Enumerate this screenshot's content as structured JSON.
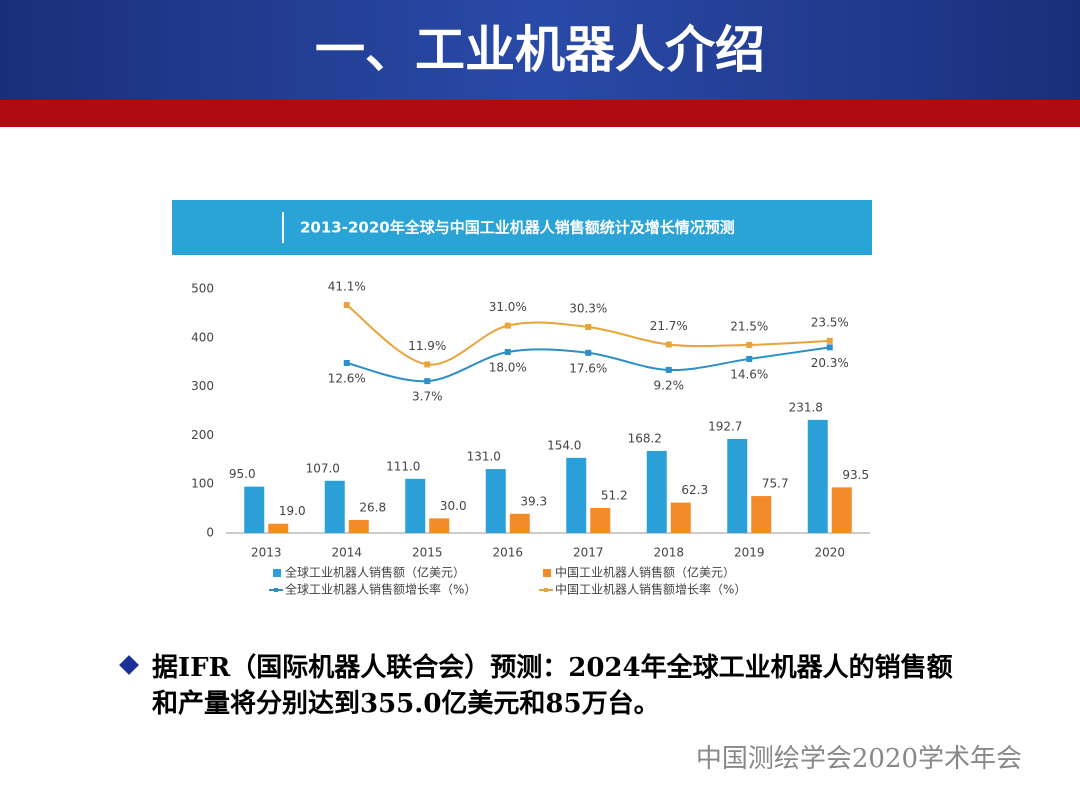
{
  "header": {
    "title": "一、工业机器人介绍"
  },
  "chart_data": {
    "type": "bar",
    "title": "2013-2020年全球与中国工业机器人销售额统计及增长情况预测",
    "categories": [
      "2013",
      "2014",
      "2015",
      "2016",
      "2017",
      "2018",
      "2019",
      "2020"
    ],
    "series": [
      {
        "name": "全球工业机器人销售额（亿美元）",
        "color": "#2b9fd8",
        "values": [
          95,
          107,
          111,
          131,
          154,
          168.2,
          192.7,
          231.8
        ],
        "value_labels": [
          "95.0",
          "107.0",
          "111.0",
          "131.0",
          "154.0",
          "168.2",
          "192.7",
          "231.8"
        ]
      },
      {
        "name": "中国工业机器人销售额（亿美元）",
        "color": "#f28c28",
        "values": [
          19,
          26.8,
          30,
          39.3,
          51.2,
          62.3,
          75.7,
          93.5
        ],
        "value_labels": [
          "19.0",
          "26.8",
          "30.0",
          "39.3",
          "51.2",
          "62.3",
          "75.7",
          "93.5"
        ]
      },
      {
        "name": "全球工业机器人销售额增长率（%）",
        "type": "line",
        "axis": "y2",
        "color": "#2b8fc8",
        "values": [
          null,
          12.6,
          3.7,
          18,
          17.6,
          9.2,
          14.6,
          20.3
        ],
        "value_labels": [
          null,
          "12.6%",
          "3.7%",
          "18.0%",
          "17.6%",
          "9.2%",
          "14.6%",
          "20.3%"
        ]
      },
      {
        "name": "中国工业机器人销售额增长率（%）",
        "type": "line",
        "axis": "y2",
        "color": "#e8a33a",
        "values": [
          null,
          41.1,
          11.9,
          31,
          30.3,
          21.7,
          21.5,
          23.5
        ],
        "value_labels": [
          null,
          "41.1%",
          "11.9%",
          "31.0%",
          "30.3%",
          "21.7%",
          "21.5%",
          "23.5%"
        ]
      }
    ],
    "ylim": [
      0,
      500
    ],
    "yticks": [
      0,
      100,
      200,
      300,
      400,
      500
    ],
    "y2lim": [
      -71,
      49
    ],
    "grid": false
  },
  "bullet": {
    "text": "据IFR（国际机器人联合会）预测：2024年全球工业机器人的销售额和产量将分别达到355.0亿美元和85万台。"
  },
  "footer": {
    "text": "中国测绘学会2020学术年会"
  }
}
